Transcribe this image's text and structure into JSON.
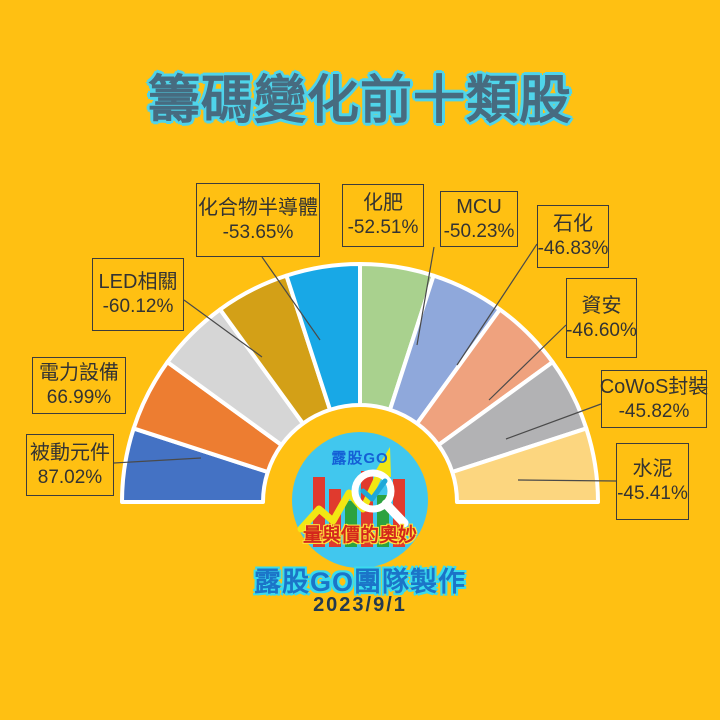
{
  "title": "籌碼變化前十類股",
  "footer": {
    "credit": "露股GO團隊製作",
    "date": "2023/9/1"
  },
  "logo": {
    "brand": "露股GO",
    "tagline": "量與價的奧妙"
  },
  "colors": {
    "background": "#FFC012",
    "title_fill": "#476B80",
    "title_outline": "#4FD4EA",
    "credit_fill": "#1B74C8",
    "credit_outline": "#3ADBEE",
    "date_color": "#24394E",
    "callout_border": "#3C3C3C",
    "callout_text": "#333333",
    "leader_line": "#4A4A4A",
    "separator": "#FFFFFF",
    "logo_circle": "#41C7EE",
    "logo_brand": "#1460D6",
    "logo_tagline": "#D4271C"
  },
  "chart_data": {
    "type": "pie",
    "subtype": "half-donut-fan",
    "title": "籌碼變化前十類股",
    "legend_position": "callout-boxes",
    "angles": {
      "start_deg": 180,
      "end_deg": 0,
      "per_slice_deg": 18,
      "equal_angle_fan": true,
      "order": "left-to-right"
    },
    "items": [
      {
        "label": "被動元件",
        "value": 87.02,
        "display": "87.02%",
        "color": "#4472C4"
      },
      {
        "label": "電力設備",
        "value": 66.99,
        "display": "66.99%",
        "color": "#ED7D31"
      },
      {
        "label": "LED相關",
        "value": -60.12,
        "display": "-60.12%",
        "color": "#D6D6D6"
      },
      {
        "label": "化合物半導體",
        "value": -53.65,
        "display": "-53.65%",
        "color": "#D3A017"
      },
      {
        "label": "化肥",
        "value": -52.51,
        "display": "-52.51%",
        "color": "#18A8E6"
      },
      {
        "label": "MCU",
        "value": -50.23,
        "display": "-50.23%",
        "color": "#A9D18E"
      },
      {
        "label": "石化",
        "value": -46.83,
        "display": "-46.83%",
        "color": "#8FA8DB"
      },
      {
        "label": "資安",
        "value": -46.6,
        "display": "-46.60%",
        "color": "#EFA27E"
      },
      {
        "label": "CoWoS封裝",
        "value": -45.82,
        "display": "-45.82%",
        "color": "#B2B2B4"
      },
      {
        "label": "水泥",
        "value": -45.41,
        "display": "-45.41%",
        "color": "#FCD67F"
      }
    ]
  }
}
